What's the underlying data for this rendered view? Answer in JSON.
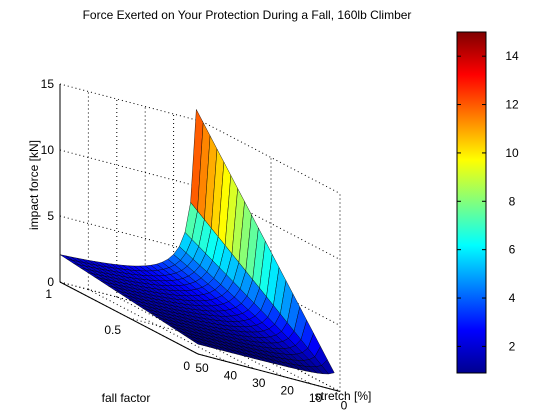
{
  "chart_data": {
    "type": "surface",
    "title": "Force Exerted on Your Protection During a Fall, 160lb Climber",
    "xlabel": "stretch [%]",
    "ylabel": "fall factor",
    "zlabel": "impact force [kN]",
    "x_ticks": [
      "0",
      "10",
      "20",
      "30",
      "40",
      "50"
    ],
    "y_ticks": [
      "0",
      "0.5",
      "1"
    ],
    "z_ticks": [
      "0",
      "5",
      "10",
      "15"
    ],
    "xlim": [
      0,
      50
    ],
    "ylim": [
      0,
      1
    ],
    "zlim": [
      0,
      15
    ],
    "colorbar": {
      "ticks": [
        "2",
        "4",
        "6",
        "8",
        "10",
        "12",
        "14"
      ],
      "range": [
        0.9,
        15
      ]
    },
    "colormap": "jet",
    "grid": true,
    "surface": {
      "description": "impact force vs stretch and fall factor",
      "stretch_range": [
        2,
        50
      ],
      "fall_factor_range": [
        0,
        1
      ],
      "approx_values": [
        {
          "stretch": 2,
          "fall_factor": 1,
          "force": 15.0
        },
        {
          "stretch": 2,
          "fall_factor": 0,
          "force": 1.6
        },
        {
          "stretch": 50,
          "fall_factor": 1,
          "force": 2.1
        },
        {
          "stretch": 50,
          "fall_factor": 0,
          "force": 0.7
        }
      ]
    }
  }
}
